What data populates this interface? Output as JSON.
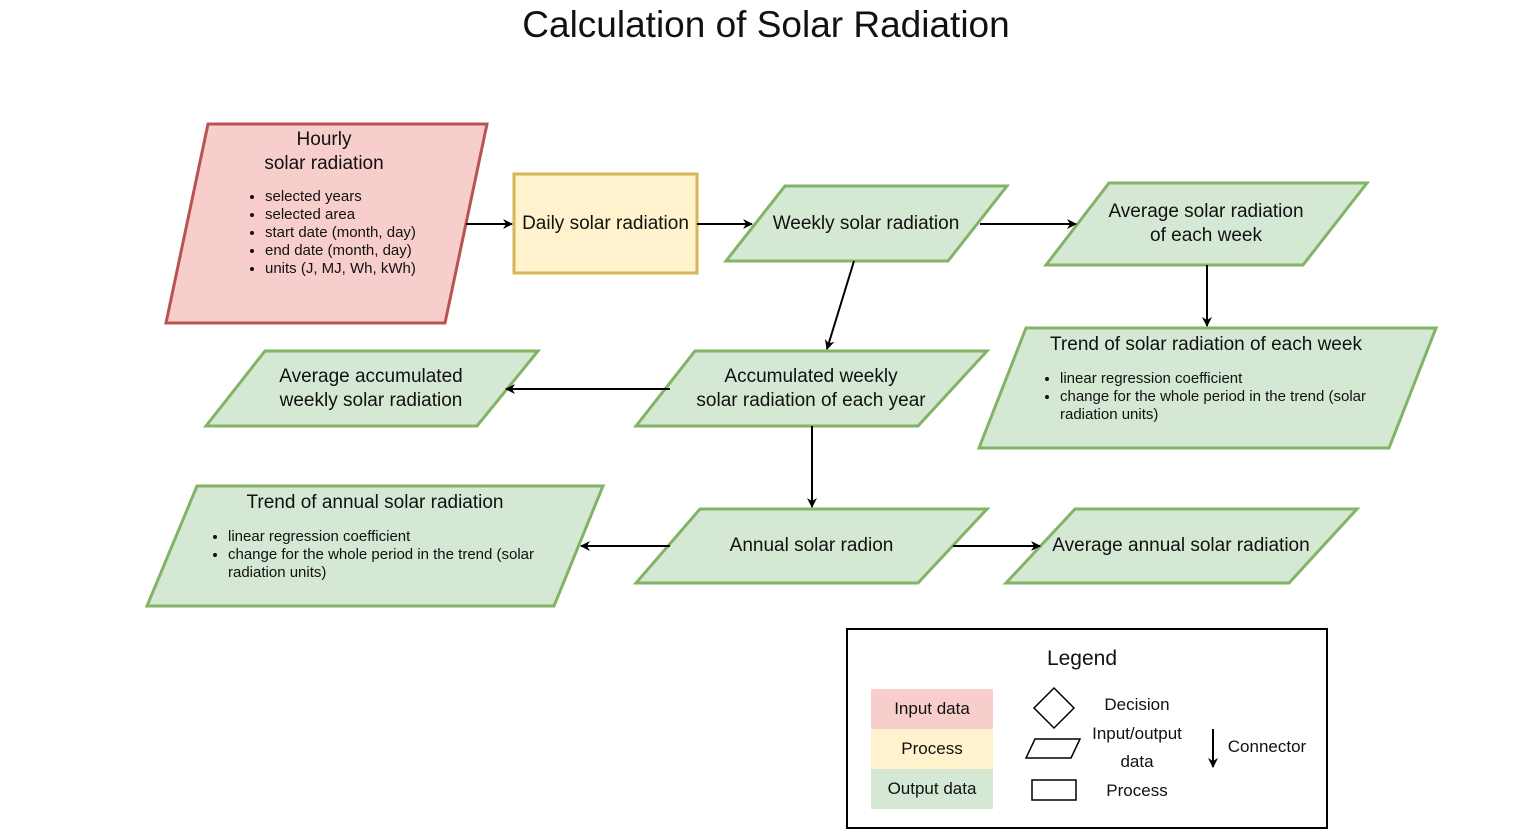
{
  "title": "Calculation of Solar Radiation",
  "nodes": {
    "hourly": {
      "heading": "Hourly\nsolar radiation",
      "items": [
        "selected years",
        "selected area",
        "start date (month, day)",
        "end date (month, day)",
        "units (J, MJ, Wh, kWh)"
      ]
    },
    "daily": "Daily solar radiation",
    "weekly": "Weekly solar radiation",
    "avg_week": "Average solar radiation\nof each week",
    "trend_week": {
      "heading": "Trend of solar radiation of each week",
      "items": [
        "linear regression coefficient",
        "change for the whole period in the trend (solar radiation units)"
      ]
    },
    "accum_weekly": "Accumulated weekly\nsolar radiation of each year",
    "avg_accum": "Average accumulated\nweekly solar radiation",
    "annual": "Annual solar radion",
    "avg_annual": "Average annual solar radiation",
    "trend_annual": {
      "heading": "Trend of annual solar radiation",
      "items": [
        "linear regression coefficient",
        "change for the whole period in the trend (solar radiation units)"
      ]
    }
  },
  "legend": {
    "title": "Legend",
    "swatches": {
      "input": "Input data",
      "process": "Process",
      "output": "Output data"
    },
    "symbols": {
      "decision": "Decision",
      "io": "Input/output\ndata",
      "process": "Process",
      "connector": "Connector"
    }
  },
  "colors": {
    "input_fill": "#f8cecc",
    "input_stroke": "#b85450",
    "process_fill": "#fff2cc",
    "process_stroke": "#d6b656",
    "output_fill": "#d5e8d4",
    "output_stroke": "#82b366"
  }
}
